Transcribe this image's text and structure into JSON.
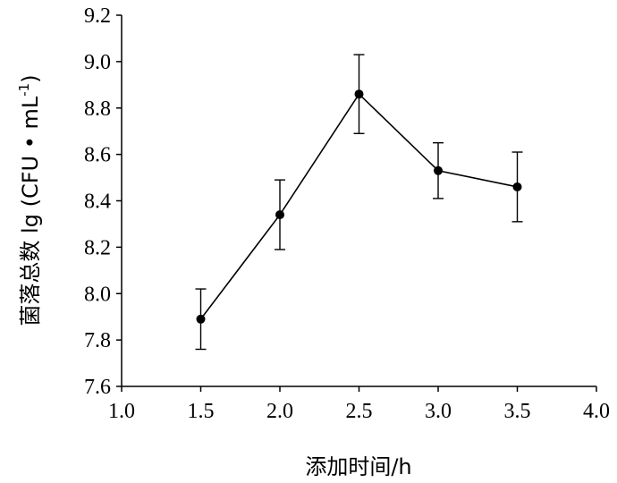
{
  "chart_data": {
    "type": "line",
    "xlabel": "添加时间/h",
    "ylabel_main": "菌落总数 lg (CFU • mL",
    "ylabel_sup": "-1",
    "ylabel_close": ")",
    "xlim": [
      1.0,
      4.0
    ],
    "ylim": [
      7.6,
      9.2
    ],
    "xticks": [
      "1.0",
      "1.5",
      "2.0",
      "2.5",
      "3.0",
      "3.5",
      "4.0"
    ],
    "yticks": [
      "7.6",
      "7.8",
      "8.0",
      "8.2",
      "8.4",
      "8.6",
      "8.8",
      "9.0",
      "9.2"
    ],
    "grid": false,
    "series": [
      {
        "x": [
          1.5,
          2.0,
          2.5,
          3.0,
          3.5
        ],
        "y": [
          7.89,
          8.34,
          8.86,
          8.53,
          8.46
        ],
        "error": [
          0.13,
          0.15,
          0.17,
          0.12,
          0.15
        ]
      }
    ],
    "colors": {
      "line": "#000000",
      "marker": "#000000"
    }
  }
}
